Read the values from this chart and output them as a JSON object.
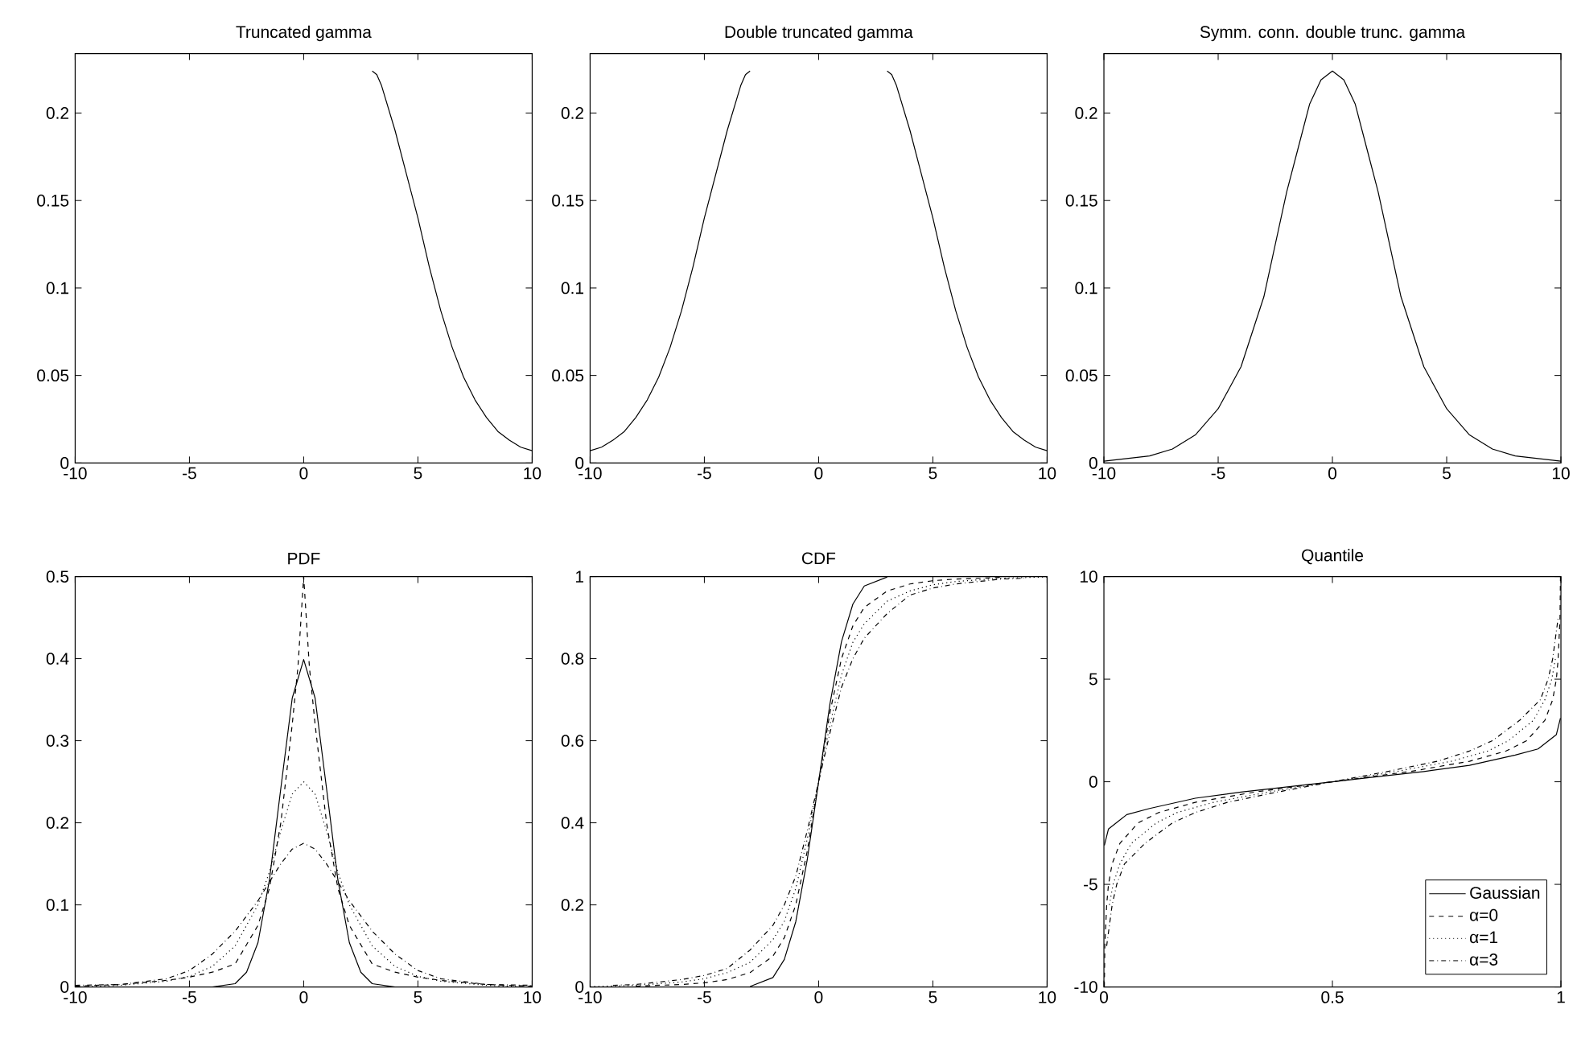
{
  "chart_data": [
    {
      "type": "line",
      "title": "Truncated gamma",
      "xlim": [
        -10,
        10
      ],
      "ylim": [
        0,
        0.234
      ],
      "xticks": [
        -10,
        -5,
        0,
        5,
        10
      ],
      "yticks": [
        0,
        0.05,
        0.1,
        0.15,
        0.2
      ],
      "series": [
        {
          "color": "#000000",
          "x": [
            3,
            3.2,
            3.4,
            4,
            4.5,
            5,
            5.5,
            6,
            6.5,
            7,
            7.5,
            8,
            8.5,
            9,
            9.5,
            10
          ],
          "values": [
            0.224,
            0.222,
            0.216,
            0.19,
            0.165,
            0.14,
            0.112,
            0.087,
            0.066,
            0.049,
            0.036,
            0.026,
            0.018,
            0.013,
            0.009,
            0.007
          ]
        }
      ]
    },
    {
      "type": "line",
      "title": "Double truncated gamma",
      "xlim": [
        -10,
        10
      ],
      "ylim": [
        0,
        0.234
      ],
      "xticks": [
        -10,
        -5,
        0,
        5,
        10
      ],
      "yticks": [
        0,
        0.05,
        0.1,
        0.15,
        0.2
      ],
      "series": [
        {
          "color": "#000000",
          "x": [
            -10,
            -9.5,
            -9,
            -8.5,
            -8,
            -7.5,
            -7,
            -6.5,
            -6,
            -5.5,
            -5,
            -4.5,
            -4,
            -3.4,
            -3.2,
            -3,
            0,
            3,
            3.2,
            3.4,
            4,
            4.5,
            5,
            5.5,
            6,
            6.5,
            7,
            7.5,
            8,
            8.5,
            9,
            9.5,
            10
          ],
          "values": [
            0.007,
            0.009,
            0.013,
            0.018,
            0.026,
            0.036,
            0.049,
            0.066,
            0.087,
            0.112,
            0.14,
            0.165,
            0.19,
            0.216,
            0.222,
            0.224,
            null,
            0.224,
            0.222,
            0.216,
            0.19,
            0.165,
            0.14,
            0.112,
            0.087,
            0.066,
            0.049,
            0.036,
            0.026,
            0.018,
            0.013,
            0.009,
            0.007
          ]
        }
      ]
    },
    {
      "type": "line",
      "title": "Symm. conn. double trunc. gamma",
      "xlim": [
        -10,
        10
      ],
      "ylim": [
        0,
        0.234
      ],
      "xticks": [
        -10,
        -5,
        0,
        5,
        10
      ],
      "yticks": [
        0,
        0.05,
        0.1,
        0.15,
        0.2
      ],
      "series": [
        {
          "color": "#000000",
          "x": [
            -10,
            -8,
            -7,
            -6,
            -5,
            -4,
            -3,
            -2.5,
            -2,
            -1.5,
            -1,
            -0.5,
            0,
            0.5,
            1,
            1.5,
            2,
            2.5,
            3,
            4,
            5,
            6,
            7,
            8,
            10
          ],
          "values": [
            0.001,
            0.004,
            0.008,
            0.016,
            0.031,
            0.055,
            0.095,
            0.125,
            0.155,
            0.18,
            0.205,
            0.219,
            0.224,
            0.219,
            0.205,
            0.18,
            0.155,
            0.125,
            0.095,
            0.055,
            0.031,
            0.016,
            0.008,
            0.004,
            0.001
          ]
        }
      ]
    },
    {
      "type": "line",
      "title": "PDF",
      "xlim": [
        -10,
        10
      ],
      "ylim": [
        0,
        0.5
      ],
      "xticks": [
        -10,
        -5,
        0,
        5,
        10
      ],
      "yticks": [
        0,
        0.1,
        0.2,
        0.3,
        0.4,
        0.5
      ],
      "series": [
        {
          "color": "#000000",
          "line_style": "solid",
          "x": [
            -10,
            -4,
            -3,
            -2.5,
            -2,
            -1.5,
            -1,
            -0.5,
            0,
            0.5,
            1,
            1.5,
            2,
            2.5,
            3,
            4,
            10
          ],
          "values": [
            0,
            0,
            0.004,
            0.018,
            0.054,
            0.13,
            0.242,
            0.352,
            0.399,
            0.352,
            0.242,
            0.13,
            0.054,
            0.018,
            0.004,
            0,
            0
          ]
        },
        {
          "color": "#000000",
          "line_style": "dashed",
          "x": [
            -10,
            -8,
            -6,
            -5,
            -4,
            -3,
            -2,
            -1.5,
            -1,
            -0.5,
            -0.25,
            0,
            0.25,
            0.5,
            1,
            1.5,
            2,
            3,
            4,
            5,
            6,
            8,
            10
          ],
          "values": [
            0.001,
            0.003,
            0.008,
            0.012,
            0.018,
            0.028,
            0.075,
            0.12,
            0.2,
            0.32,
            0.39,
            0.5,
            0.39,
            0.32,
            0.2,
            0.12,
            0.075,
            0.028,
            0.018,
            0.012,
            0.008,
            0.003,
            0.001
          ]
        },
        {
          "color": "#000000",
          "line_style": "dotted",
          "x": [
            -10,
            -8,
            -6,
            -5,
            -4,
            -3,
            -2,
            -1.5,
            -1,
            -0.5,
            0,
            0.5,
            1,
            1.5,
            2,
            3,
            4,
            5,
            6,
            8,
            10
          ],
          "values": [
            0,
            0.002,
            0.007,
            0.013,
            0.025,
            0.05,
            0.1,
            0.14,
            0.19,
            0.235,
            0.25,
            0.235,
            0.19,
            0.14,
            0.1,
            0.05,
            0.025,
            0.013,
            0.007,
            0.002,
            0
          ]
        },
        {
          "color": "#000000",
          "line_style": "dashdot",
          "x": [
            -10,
            -8,
            -6,
            -5,
            -4,
            -3,
            -2,
            -1.5,
            -1,
            -0.5,
            0,
            0.5,
            1,
            1.5,
            2,
            3,
            4,
            5,
            6,
            8,
            10
          ],
          "values": [
            0.002,
            0.003,
            0.01,
            0.02,
            0.04,
            0.068,
            0.105,
            0.128,
            0.15,
            0.168,
            0.175,
            0.168,
            0.15,
            0.128,
            0.105,
            0.068,
            0.04,
            0.02,
            0.01,
            0.003,
            0.002
          ]
        }
      ]
    },
    {
      "type": "line",
      "title": "CDF",
      "xlim": [
        -10,
        10
      ],
      "ylim": [
        0,
        1
      ],
      "xticks": [
        -10,
        -5,
        0,
        5,
        10
      ],
      "yticks": [
        0,
        0.2,
        0.4,
        0.6,
        0.8,
        1
      ],
      "series": [
        {
          "color": "#000000",
          "line_style": "solid",
          "x": [
            -3,
            -2,
            -1.5,
            -1,
            -0.5,
            0,
            0.5,
            1,
            1.5,
            2,
            3
          ],
          "values": [
            0.001,
            0.023,
            0.067,
            0.159,
            0.309,
            0.5,
            0.691,
            0.841,
            0.933,
            0.977,
            0.999
          ]
        },
        {
          "color": "#000000",
          "line_style": "dashed",
          "x": [
            -8,
            -6,
            -5,
            -4,
            -3,
            -2,
            -1.5,
            -1,
            -0.5,
            0,
            0.5,
            1,
            1.5,
            2,
            3,
            4,
            5,
            6,
            8
          ],
          "values": [
            0.002,
            0.006,
            0.01,
            0.018,
            0.035,
            0.075,
            0.12,
            0.2,
            0.33,
            0.5,
            0.67,
            0.8,
            0.88,
            0.925,
            0.965,
            0.982,
            0.99,
            0.994,
            0.998
          ]
        },
        {
          "color": "#000000",
          "line_style": "dotted",
          "x": [
            -10,
            -8,
            -6,
            -5,
            -4,
            -3,
            -2,
            -1.5,
            -1,
            -0.5,
            0,
            0.5,
            1,
            1.5,
            2,
            3,
            4,
            5,
            6,
            8,
            10
          ],
          "values": [
            0.001,
            0.004,
            0.012,
            0.02,
            0.035,
            0.06,
            0.115,
            0.16,
            0.24,
            0.36,
            0.5,
            0.64,
            0.76,
            0.84,
            0.885,
            0.94,
            0.965,
            0.98,
            0.988,
            0.996,
            0.999
          ]
        },
        {
          "color": "#000000",
          "line_style": "dashdot",
          "x": [
            -9,
            -8,
            -6,
            -5,
            -4,
            -3,
            -2,
            -1.5,
            -1,
            -0.5,
            0,
            0.5,
            1,
            1.5,
            2,
            3,
            4,
            5,
            6,
            8,
            9
          ],
          "values": [
            0.004,
            0.006,
            0.018,
            0.028,
            0.045,
            0.09,
            0.15,
            0.2,
            0.27,
            0.38,
            0.5,
            0.62,
            0.73,
            0.8,
            0.85,
            0.91,
            0.955,
            0.972,
            0.982,
            0.994,
            0.996
          ]
        }
      ]
    },
    {
      "type": "line",
      "title": "Quantile",
      "xlim": [
        0,
        1
      ],
      "ylim": [
        -10,
        10
      ],
      "xticks": [
        0,
        0.5,
        1
      ],
      "yticks": [
        -10,
        -5,
        0,
        5,
        10
      ],
      "legend": "bottom right",
      "series": [
        {
          "name": "Gaussian",
          "color": "#000000",
          "line_style": "solid",
          "x": [
            0.001,
            0.01,
            0.05,
            0.1,
            0.2,
            0.3,
            0.4,
            0.5,
            0.6,
            0.7,
            0.8,
            0.9,
            0.95,
            0.99,
            0.999
          ],
          "values": [
            -3.1,
            -2.3,
            -1.6,
            -1.3,
            -0.8,
            -0.5,
            -0.25,
            0,
            0.25,
            0.5,
            0.8,
            1.3,
            1.6,
            2.3,
            3.1
          ]
        },
        {
          "name": "α=0",
          "color": "#000000",
          "line_style": "dashed",
          "x": [
            0.001,
            0.002,
            0.006,
            0.01,
            0.018,
            0.035,
            0.075,
            0.12,
            0.2,
            0.33,
            0.5,
            0.67,
            0.8,
            0.88,
            0.925,
            0.965,
            0.982,
            0.99,
            0.994,
            0.998,
            0.999
          ],
          "values": [
            -10,
            -8,
            -6,
            -5,
            -4,
            -3,
            -2,
            -1.5,
            -1,
            -0.5,
            0,
            0.5,
            1,
            1.5,
            2,
            3,
            4,
            5,
            6,
            8,
            10
          ]
        },
        {
          "name": "α=1",
          "color": "#000000",
          "line_style": "dotted",
          "x": [
            0.012,
            0.02,
            0.035,
            0.06,
            0.115,
            0.16,
            0.24,
            0.36,
            0.5,
            0.64,
            0.76,
            0.84,
            0.885,
            0.94,
            0.965,
            0.98,
            0.988
          ],
          "values": [
            -6,
            -5,
            -4,
            -3,
            -2,
            -1.5,
            -1,
            -0.5,
            0,
            0.5,
            1,
            1.5,
            2,
            3,
            4,
            5,
            6
          ]
        },
        {
          "name": "α=3",
          "color": "#000000",
          "line_style": "dashdot",
          "x": [
            0.006,
            0.018,
            0.028,
            0.045,
            0.09,
            0.15,
            0.2,
            0.27,
            0.38,
            0.5,
            0.62,
            0.73,
            0.8,
            0.85,
            0.91,
            0.955,
            0.972,
            0.982,
            0.994
          ],
          "values": [
            -8,
            -6,
            -5,
            -4,
            -3,
            -2,
            -1.5,
            -1,
            -0.5,
            0,
            0.5,
            1,
            1.5,
            2,
            3,
            4,
            5,
            6,
            8
          ]
        }
      ]
    }
  ]
}
